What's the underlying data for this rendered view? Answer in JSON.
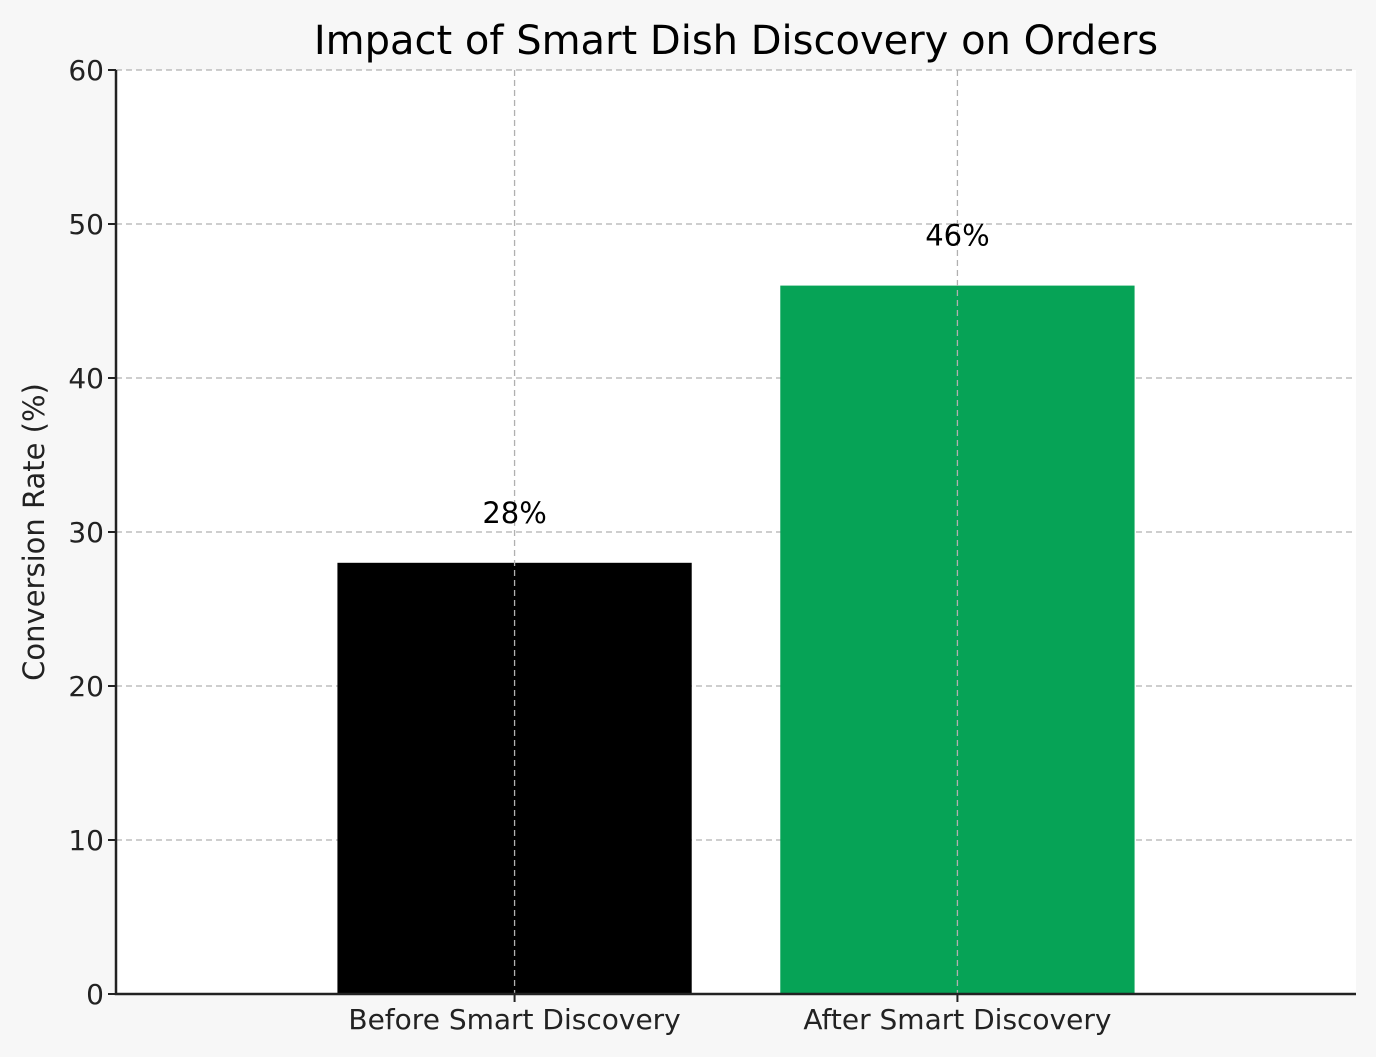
{
  "chart_data": {
    "type": "bar",
    "title": "Impact of Smart Dish Discovery on Orders",
    "xlabel": "",
    "ylabel": "Conversion Rate (%)",
    "categories": [
      "Before Smart Discovery",
      "After Smart Discovery"
    ],
    "values": [
      28,
      46
    ],
    "data_labels": [
      "28%",
      "46%"
    ],
    "colors": [
      "#000000",
      "#06a356"
    ],
    "ylim": [
      0,
      60
    ],
    "yticks": [
      0,
      10,
      20,
      30,
      40,
      50,
      60
    ],
    "ytick_labels": [
      "0",
      "10",
      "20",
      "30",
      "40",
      "50",
      "60"
    ],
    "grid": true,
    "legend": false
  }
}
